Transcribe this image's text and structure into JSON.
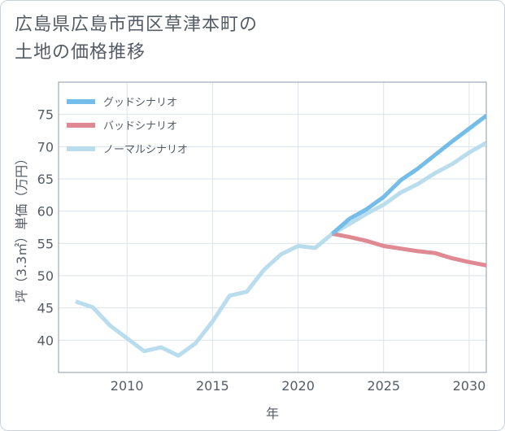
{
  "title": {
    "line1": "広島県広島市西区草津本町の",
    "line2": "土地の価格推移"
  },
  "chart_data": {
    "type": "line",
    "xlabel": "年",
    "ylabel": "坪（3.3㎡）単価（万円）",
    "xlim": [
      2006,
      2031
    ],
    "ylim": [
      35,
      80
    ],
    "xticks": [
      2010,
      2015,
      2020,
      2025,
      2030
    ],
    "yticks": [
      40,
      45,
      50,
      55,
      60,
      65,
      70,
      75
    ],
    "grid": true,
    "legend_position": "top-left",
    "series": [
      {
        "name": "グッドシナリオ",
        "color": "#74bde9",
        "x": [
          2022,
          2023,
          2024,
          2025,
          2026,
          2027,
          2028,
          2029,
          2030,
          2031
        ],
        "values": [
          56.5,
          58.8,
          60.3,
          62.2,
          64.8,
          66.6,
          68.7,
          70.8,
          72.8,
          74.8
        ]
      },
      {
        "name": "バッドシナリオ",
        "color": "#df8a92",
        "x": [
          2022,
          2023,
          2024,
          2025,
          2026,
          2027,
          2028,
          2029,
          2030,
          2031
        ],
        "values": [
          56.5,
          56.0,
          55.4,
          54.6,
          54.2,
          53.8,
          53.5,
          52.7,
          52.1,
          51.6
        ]
      },
      {
        "name": "ノーマルシナリオ",
        "color": "#b9dded",
        "x": [
          2007,
          2008,
          2009,
          2010,
          2011,
          2012,
          2013,
          2014,
          2015,
          2016,
          2017,
          2018,
          2019,
          2020,
          2021,
          2022,
          2023,
          2024,
          2025,
          2026,
          2027,
          2028,
          2029,
          2030,
          2031
        ],
        "values": [
          46.0,
          45.1,
          42.3,
          40.3,
          38.3,
          38.9,
          37.6,
          39.5,
          42.9,
          46.9,
          47.5,
          50.9,
          53.3,
          54.6,
          54.3,
          56.5,
          58.0,
          59.6,
          61.0,
          62.9,
          64.2,
          65.9,
          67.3,
          69.1,
          70.6
        ]
      }
    ]
  }
}
